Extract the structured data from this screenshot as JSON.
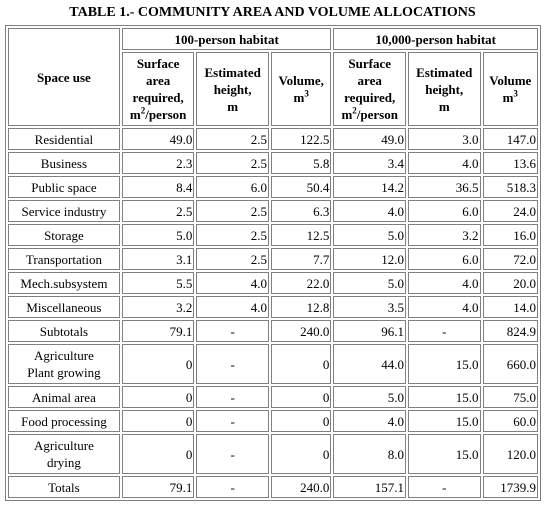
{
  "title": "TABLE 1.- COMMUNITY AREA AND VOLUME ALLOCATIONS",
  "headers": {
    "space_use": "Space use",
    "group_100": "100-person habitat",
    "group_10000": "10,000-person habitat",
    "surface_line1": "Surface",
    "surface_line2": "area",
    "surface_line3": "required,",
    "surface_unit_m": "m",
    "surface_unit_exp": "2",
    "surface_unit_rest": "/person",
    "height_line1": "Estimated",
    "height_line2": "height,",
    "height_line3": "m",
    "volume_100": "Volume,",
    "volume_10000": "Volume",
    "volume_unit_m": "m",
    "volume_unit_exp": "3"
  },
  "rows": [
    {
      "name": "Residential",
      "a": "49.0",
      "b": "2.5",
      "c": "122.5",
      "d": "49.0",
      "e": "3.0",
      "f": "147.0"
    },
    {
      "name": "Business",
      "a": "2.3",
      "b": "2.5",
      "c": "5.8",
      "d": "3.4",
      "e": "4.0",
      "f": "13.6"
    },
    {
      "name": "Public space",
      "a": "8.4",
      "b": "6.0",
      "c": "50.4",
      "d": "14.2",
      "e": "36.5",
      "f": "518.3"
    },
    {
      "name": "Service industry",
      "a": "2.5",
      "b": "2.5",
      "c": "6.3",
      "d": "4.0",
      "e": "6.0",
      "f": "24.0"
    },
    {
      "name": "Storage",
      "a": "5.0",
      "b": "2.5",
      "c": "12.5",
      "d": "5.0",
      "e": "3.2",
      "f": "16.0"
    },
    {
      "name": "Transportation",
      "a": "3.1",
      "b": "2.5",
      "c": "7.7",
      "d": "12.0",
      "e": "6.0",
      "f": "72.0"
    },
    {
      "name": "Mech.subsystem",
      "a": "5.5",
      "b": "4.0",
      "c": "22.0",
      "d": "5.0",
      "e": "4.0",
      "f": "20.0"
    },
    {
      "name": "Miscellaneous",
      "a": "3.2",
      "b": "4.0",
      "c": "12.8",
      "d": "3.5",
      "e": "4.0",
      "f": "14.0"
    },
    {
      "name": "Subtotals",
      "a": "79.1",
      "b": "-",
      "c": "240.0",
      "d": "96.1",
      "e": "-",
      "f": "824.9"
    },
    {
      "name1": "Agriculture",
      "name2": "Plant growing",
      "a": "0",
      "b": "-",
      "c": "0",
      "d": "44.0",
      "e": "15.0",
      "f": "660.0"
    },
    {
      "name": "Animal area",
      "a": "0",
      "b": "-",
      "c": "0",
      "d": "5.0",
      "e": "15.0",
      "f": "75.0"
    },
    {
      "name": "Food processing",
      "a": "0",
      "b": "-",
      "c": "0",
      "d": "4.0",
      "e": "15.0",
      "f": "60.0"
    },
    {
      "name1": "Agriculture",
      "name2": "drying",
      "a": "0",
      "b": "-",
      "c": "0",
      "d": "8.0",
      "e": "15.0",
      "f": "120.0"
    },
    {
      "name": "Totals",
      "a": "79.1",
      "b": "-",
      "c": "240.0",
      "d": "157.1",
      "e": "-",
      "f": "1739.9"
    }
  ]
}
